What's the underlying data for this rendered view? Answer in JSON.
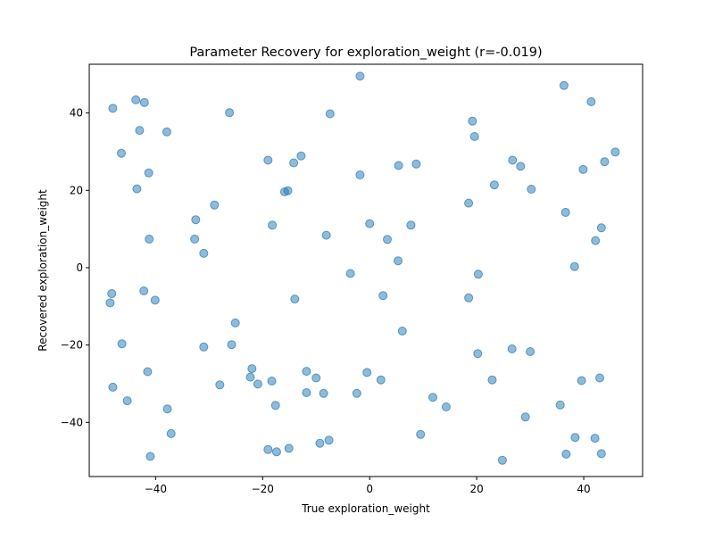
{
  "chart_data": {
    "type": "scatter",
    "title": "Parameter Recovery for exploration_weight (r=-0.019)",
    "xlabel": "True exploration_weight",
    "ylabel": "Recovered exploration_weight",
    "xlim": [
      -52.4,
      51.0
    ],
    "ylim": [
      -54.0,
      52.6
    ],
    "xticks": [
      -40,
      -20,
      0,
      20,
      40
    ],
    "yticks": [
      -40,
      -20,
      0,
      20,
      40
    ],
    "grid": false,
    "marker_color": "#1f77b4",
    "marker_alpha": 0.5,
    "x": [
      -48.0,
      -43.7,
      -42.1,
      -43.0,
      -37.9,
      -46.4,
      -26.2,
      -1.8,
      -7.4,
      36.3,
      41.4,
      19.2,
      19.6,
      26.7,
      28.2,
      45.9,
      43.9,
      39.9,
      -43.5,
      -41.3,
      -19.0,
      -14.2,
      -12.8,
      -15.3,
      -15.9,
      -29.0,
      -1.8,
      5.4,
      8.7,
      23.3,
      30.2,
      18.5,
      36.6,
      43.3,
      -32.5,
      -41.2,
      -32.7,
      -31.0,
      -18.2,
      -8.1,
      0.0,
      3.3,
      7.7,
      42.2,
      38.3,
      5.3,
      -3.6,
      -48.2,
      -42.2,
      -40.1,
      -14.0,
      2.5,
      18.5,
      20.3,
      -48.5,
      -25.1,
      6.1,
      -46.3,
      -31.0,
      -25.8,
      -22.0,
      -11.8,
      -10.0,
      -0.5,
      2.1,
      26.6,
      30.0,
      20.2,
      -41.5,
      -48.0,
      -45.3,
      -22.3,
      -20.9,
      -28.0,
      -18.3,
      -17.6,
      -11.8,
      -8.6,
      -2.4,
      11.8,
      14.3,
      22.9,
      35.6,
      29.1,
      -37.8,
      -37.1,
      9.5,
      42.1,
      38.4,
      -19.0,
      -17.4,
      -15.1,
      -7.6,
      -9.3,
      -41.0,
      24.8,
      36.7,
      43.3,
      43.0,
      39.6
    ],
    "y": [
      41.2,
      43.4,
      42.7,
      35.5,
      35.1,
      29.6,
      40.1,
      49.5,
      39.8,
      47.1,
      42.9,
      37.9,
      33.9,
      27.8,
      26.2,
      29.9,
      27.4,
      25.4,
      20.4,
      24.5,
      27.8,
      27.1,
      28.9,
      19.9,
      19.6,
      16.2,
      24.0,
      26.4,
      26.8,
      21.4,
      20.3,
      16.7,
      14.3,
      10.3,
      12.4,
      7.4,
      7.4,
      3.7,
      11.0,
      8.4,
      11.4,
      7.3,
      11.0,
      7.0,
      0.3,
      1.8,
      -1.5,
      -6.7,
      -6.0,
      -8.4,
      -8.1,
      -7.2,
      -7.8,
      -1.7,
      -9.1,
      -14.3,
      -16.4,
      -19.7,
      -20.5,
      -19.9,
      -26.1,
      -26.8,
      -28.5,
      -27.1,
      -29.0,
      -21.0,
      -21.7,
      -22.2,
      -26.9,
      -30.9,
      -34.4,
      -28.3,
      -30.1,
      -30.3,
      -29.3,
      -35.6,
      -32.3,
      -32.5,
      -32.5,
      -33.5,
      -36.0,
      -29.0,
      -35.5,
      -38.6,
      -36.5,
      -42.9,
      -43.1,
      -44.1,
      -43.9,
      -47.0,
      -47.6,
      -46.7,
      -44.6,
      -45.4,
      -48.8,
      -49.8,
      -48.2,
      -48.1,
      -28.5,
      -29.2
    ]
  }
}
